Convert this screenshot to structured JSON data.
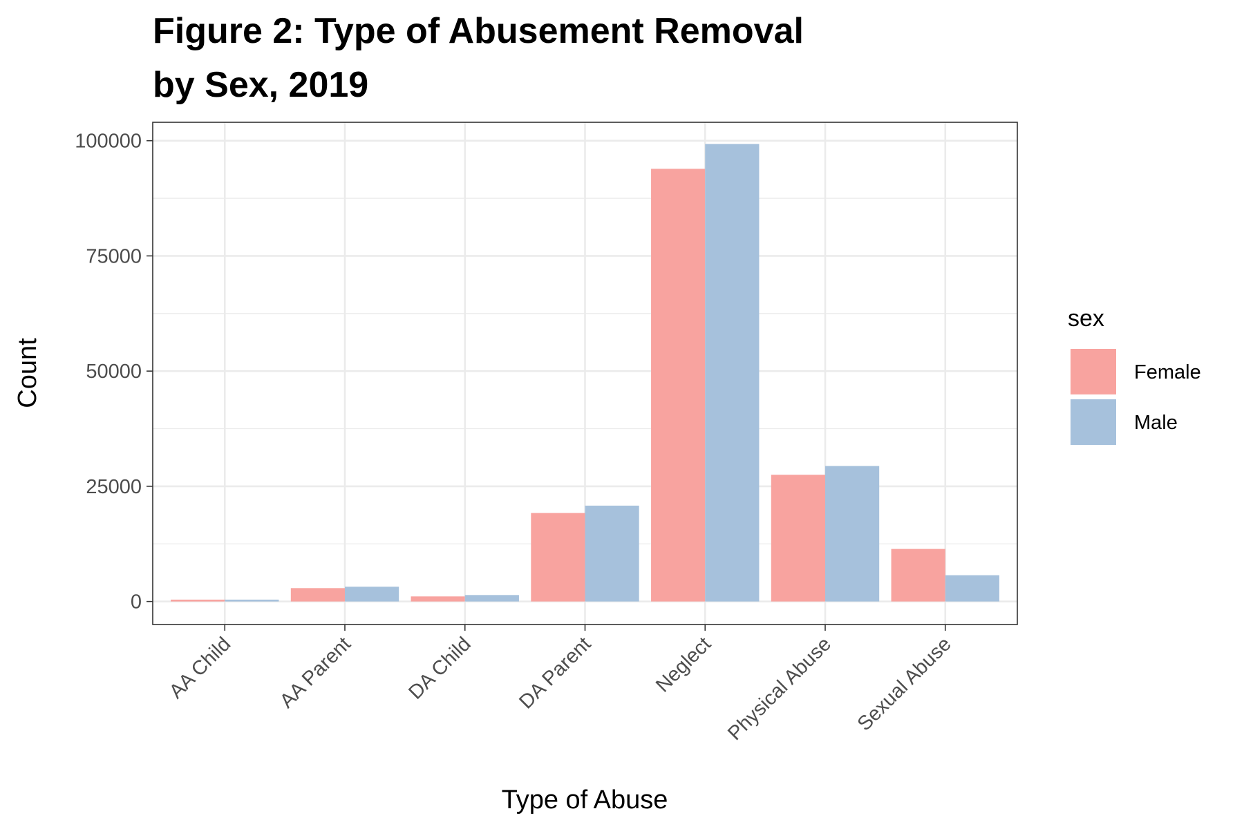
{
  "chart_data": {
    "type": "bar",
    "title_lines": [
      "Figure 2: Type of Abusement Removal",
      "by Sex, 2019"
    ],
    "xlabel": "Type of Abuse",
    "ylabel": "Count",
    "categories": [
      "AA Child",
      "AA Parent",
      "DA Child",
      "DA Parent",
      "Neglect",
      "Physical Abuse",
      "Sexual Abuse"
    ],
    "series": [
      {
        "name": "Female",
        "color": "#F8A39F",
        "values": [
          400,
          2900,
          1100,
          19200,
          93900,
          27500,
          11400
        ]
      },
      {
        "name": "Male",
        "color": "#A6C1DC",
        "values": [
          400,
          3200,
          1400,
          20800,
          99300,
          29400,
          5700
        ]
      }
    ],
    "ylim": [
      -5000,
      104000
    ],
    "yticks": [
      0,
      25000,
      50000,
      75000,
      100000
    ],
    "ytick_labels": [
      "0",
      "25000",
      "50000",
      "75000",
      "100000"
    ],
    "grid": true,
    "legend": {
      "title": "sex",
      "placement": "right"
    }
  }
}
